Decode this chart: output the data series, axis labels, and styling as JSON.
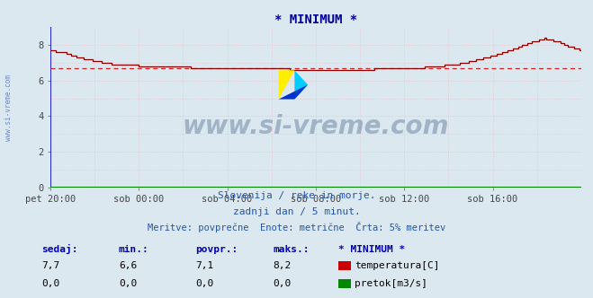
{
  "title": "* MINIMUM *",
  "title_color": "#000099",
  "bg_color": "#dce8f0",
  "plot_bg_color": "#dce8f0",
  "grid_major_color": "#c8c8e8",
  "grid_minor_color": "#e8c0c8",
  "axis_color": "#0000cc",
  "xlim": [
    0,
    288
  ],
  "ylim": [
    0,
    9
  ],
  "yticks": [
    0,
    2,
    4,
    6,
    8
  ],
  "xtick_labels": [
    "pet 20:00",
    "sob 00:00",
    "sob 04:00",
    "sob 08:00",
    "sob 12:00",
    "sob 16:00"
  ],
  "xtick_positions": [
    0,
    48,
    96,
    144,
    192,
    240
  ],
  "temp_color": "#880000",
  "flow_color": "#008800",
  "dashed_line_value": 6.7,
  "dashed_color": "#cc2222",
  "watermark_text": "www.si-vreme.com",
  "watermark_color": "#1a3a6b",
  "watermark_alpha": 0.3,
  "subtitle1": "Slovenija / reke in morje.",
  "subtitle2": "zadnji dan / 5 minut.",
  "subtitle3": "Meritve: povprečne  Enote: metrične  Črta: 5% meritev",
  "subtitle_color": "#2255aa",
  "label_color": "#0000aa",
  "sedaj_label": "sedaj:",
  "min_label": "min.:",
  "povpr_label": "povpr.:",
  "maks_label": "maks.:",
  "name_label": "* MINIMUM *",
  "temp_row": [
    "7,7",
    "6,6",
    "7,1",
    "8,2"
  ],
  "flow_row": [
    "0,0",
    "0,0",
    "0,0",
    "0,0"
  ],
  "temp_unit": "temperatura[C]",
  "flow_unit": "pretok[m3/s]",
  "keypoints_x": [
    0,
    8,
    15,
    25,
    35,
    48,
    60,
    75,
    96,
    115,
    130,
    144,
    158,
    175,
    192,
    210,
    225,
    240,
    252,
    262,
    268,
    275,
    282,
    288
  ],
  "keypoints_y": [
    7.7,
    7.55,
    7.3,
    7.1,
    6.9,
    6.85,
    6.8,
    6.75,
    6.7,
    6.68,
    6.65,
    6.65,
    6.65,
    6.65,
    6.68,
    6.8,
    7.0,
    7.4,
    7.8,
    8.2,
    8.35,
    8.2,
    7.9,
    7.7
  ]
}
